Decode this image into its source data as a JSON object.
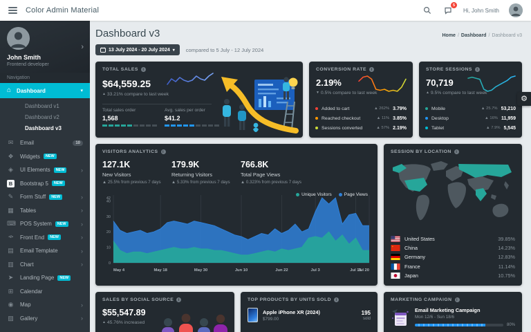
{
  "theme_color": "#00bcd4",
  "header": {
    "app_title": "Color Admin Material",
    "user_greeting": "Hi, John Smith",
    "notification_count": "5"
  },
  "sidebar": {
    "profile": {
      "name": "John Smith",
      "role": "Frontend developer"
    },
    "section_label": "Navigation",
    "new_badge_label": "NEW",
    "active_item": {
      "label": "Dashboard",
      "icon": "home-icon"
    },
    "submenu": [
      {
        "label": "Dashboard v1",
        "active": false
      },
      {
        "label": "Dashboard v2",
        "active": false
      },
      {
        "label": "Dashboard v3",
        "active": true
      }
    ],
    "items": [
      {
        "label": "Email",
        "icon": "envelope-icon",
        "badge": "10"
      },
      {
        "label": "Widgets",
        "icon": "widgets-icon",
        "new": true
      },
      {
        "label": "UI Elements",
        "icon": "gem-icon",
        "new": true,
        "arrow": true
      },
      {
        "label": "Bootstrap 5",
        "icon": "bootstrap-icon",
        "new": true
      },
      {
        "label": "Form Stuff",
        "icon": "pencil-icon",
        "new": true,
        "arrow": true
      },
      {
        "label": "Tables",
        "icon": "table-icon",
        "arrow": true
      },
      {
        "label": "POS System",
        "icon": "pos-terminal-icon",
        "new": true,
        "arrow": true
      },
      {
        "label": "Front End",
        "icon": "code-icon",
        "new": true,
        "arrow": true
      },
      {
        "label": "Email Template",
        "icon": "template-icon",
        "arrow": true
      },
      {
        "label": "Chart",
        "icon": "chart-icon",
        "arrow": true
      },
      {
        "label": "Landing Page",
        "icon": "rocket-icon",
        "new": true
      },
      {
        "label": "Calendar",
        "icon": "calendar-icon"
      },
      {
        "label": "Map",
        "icon": "map-pin-icon",
        "arrow": true
      },
      {
        "label": "Gallery",
        "icon": "image-icon",
        "arrow": true
      }
    ]
  },
  "page": {
    "title": "Dashboard v3",
    "breadcrumb": [
      "Home",
      "Dashboard",
      "Dashboard v3"
    ],
    "date_range": "13 July 2024 - 20 July 2024",
    "compare_text": "compared to 5 July - 12 July 2024"
  },
  "cards": {
    "total_sales": {
      "title": "TOTAL SALES",
      "value": "$64,559.25",
      "change_dir": "up",
      "change": "33.21% compare to last week",
      "stats": [
        {
          "label": "Total sales order",
          "value": "1,568",
          "color": "#26a69a",
          "bar_pct": 56
        },
        {
          "label": "Avg. sales per order",
          "value": "$41.2",
          "color": "#2196f3",
          "bar_pct": 56
        }
      ]
    },
    "conversion_rate": {
      "title": "CONVERSION RATE",
      "value": "2.19%",
      "change_dir": "down",
      "change": "0.5% compare to last week",
      "rows": [
        {
          "label": "Added to cart",
          "color": "#f44336",
          "dir": "up",
          "change": "262%",
          "value": "3.79%"
        },
        {
          "label": "Reached checkout",
          "color": "#ff9800",
          "dir": "up",
          "change": "11%",
          "value": "3.85%"
        },
        {
          "label": "Sessions converted",
          "color": "#cddc39",
          "dir": "up",
          "change": "57%",
          "value": "2.19%"
        }
      ]
    },
    "store_sessions": {
      "title": "STORE SESSIONS",
      "value": "70,719",
      "change_dir": "up",
      "change": "9.5% compare to last week",
      "rows": [
        {
          "label": "Mobile",
          "color": "#26a69a",
          "dir": "up",
          "change": "25.7%",
          "value": "53,210"
        },
        {
          "label": "Desktop",
          "color": "#2196f3",
          "dir": "up",
          "change": "16%",
          "value": "11,959"
        },
        {
          "label": "Tablet",
          "color": "#00bcd4",
          "dir": "up",
          "change": "7.9%",
          "value": "5,545"
        }
      ]
    },
    "visitors": {
      "title": "VISITORS ANALYTICS",
      "stats": [
        {
          "value": "127.1K",
          "label": "New Visitors",
          "dir": "up",
          "change": "25.5% from previous 7 days"
        },
        {
          "value": "179.9K",
          "label": "Returning Visitors",
          "dir": "up",
          "change": "5.33% from previous 7 days"
        },
        {
          "value": "766.8K",
          "label": "Total Page Views",
          "dir": "up",
          "change": "0.323% from previous 7 days"
        }
      ]
    },
    "locations": {
      "title": "SESSION BY LOCATION",
      "rows": [
        {
          "country": "United States",
          "flag": "us",
          "value": "39.85%"
        },
        {
          "country": "China",
          "flag": "cn",
          "value": "14.23%"
        },
        {
          "country": "Germany",
          "flag": "de",
          "value": "12.83%"
        },
        {
          "country": "France",
          "flag": "fr",
          "value": "11.14%"
        },
        {
          "country": "Japan",
          "flag": "jp",
          "value": "10.75%"
        }
      ]
    },
    "social_sales": {
      "title": "SALES BY SOCIAL SOURCE",
      "value": "$55,547.89",
      "change_dir": "up",
      "change": "45.76% increased"
    },
    "top_products": {
      "title": "TOP PRODUCTS BY UNITS SOLD",
      "items": [
        {
          "name": "Apple iPhone XR (2024)",
          "price": "$799.00",
          "qty": "195",
          "unit": "sold"
        }
      ]
    },
    "campaign": {
      "title": "MARKETING CAMPAIGN",
      "items": [
        {
          "name": "Email Marketing Campaign",
          "date": "Mon 12/6 - Sun 18/6",
          "progress": 80,
          "progress_label": "80%"
        }
      ]
    }
  },
  "chart_data": [
    {
      "type": "area",
      "title": "Visitors Analytics",
      "ylim": [
        0,
        42
      ],
      "yticks": [
        0,
        10,
        20,
        30,
        40,
        42
      ],
      "grid": "vertical",
      "legend_position": "top-right",
      "legend_order": [
        "Unique Visitors",
        "Page Views"
      ],
      "xticks": [
        "May 4",
        "May 18",
        "May 30",
        "Jun 10",
        "Jun 22",
        "Jul 3",
        "Jul 15",
        "Jul 20"
      ],
      "xtick_indices": [
        0,
        7,
        13,
        19,
        25,
        30,
        36,
        38
      ],
      "series": [
        {
          "name": "Page Views",
          "color": "#2f80d8",
          "values": [
            27,
            21,
            19,
            20,
            21,
            19,
            20,
            22,
            26,
            27,
            26,
            25,
            27,
            26,
            25,
            24,
            22,
            20,
            18,
            17,
            15,
            17,
            19,
            18,
            22,
            19,
            21,
            25,
            20,
            22,
            33,
            42,
            38,
            42,
            25,
            31,
            32,
            24,
            24
          ]
        },
        {
          "name": "Unique Visitors",
          "color": "#26a69a",
          "values": [
            14,
            8,
            6,
            7,
            7,
            6,
            7,
            8,
            9,
            10,
            9,
            9,
            10,
            9,
            9,
            8,
            8,
            7,
            6,
            5,
            5,
            6,
            7,
            8,
            7,
            9,
            8,
            9,
            10,
            16,
            17,
            16,
            20,
            14,
            18,
            12,
            16,
            8,
            8
          ]
        }
      ]
    },
    {
      "type": "line",
      "name": "total-sales-sparkline",
      "colors": [
        "#3f5ec7",
        "#7aa5f8"
      ],
      "values": [
        9,
        11,
        10,
        11.5,
        10.5,
        10,
        10.5,
        12,
        11,
        10.5,
        12,
        13
      ]
    },
    {
      "type": "line",
      "name": "conversion-rate-sparkline",
      "colors": [
        "#f44336",
        "#ff9800",
        "#cddc39"
      ],
      "values": [
        12,
        14,
        14.5,
        13,
        8,
        7.5,
        8,
        7,
        7.5,
        7,
        9,
        13
      ]
    },
    {
      "type": "line",
      "name": "store-sessions-sparkline",
      "colors": [
        "#26a69a",
        "#29b6f6"
      ],
      "values": [
        11,
        11.5,
        11,
        10.5,
        6,
        5,
        5.5,
        7,
        8,
        9,
        10,
        11.5,
        12
      ]
    }
  ]
}
